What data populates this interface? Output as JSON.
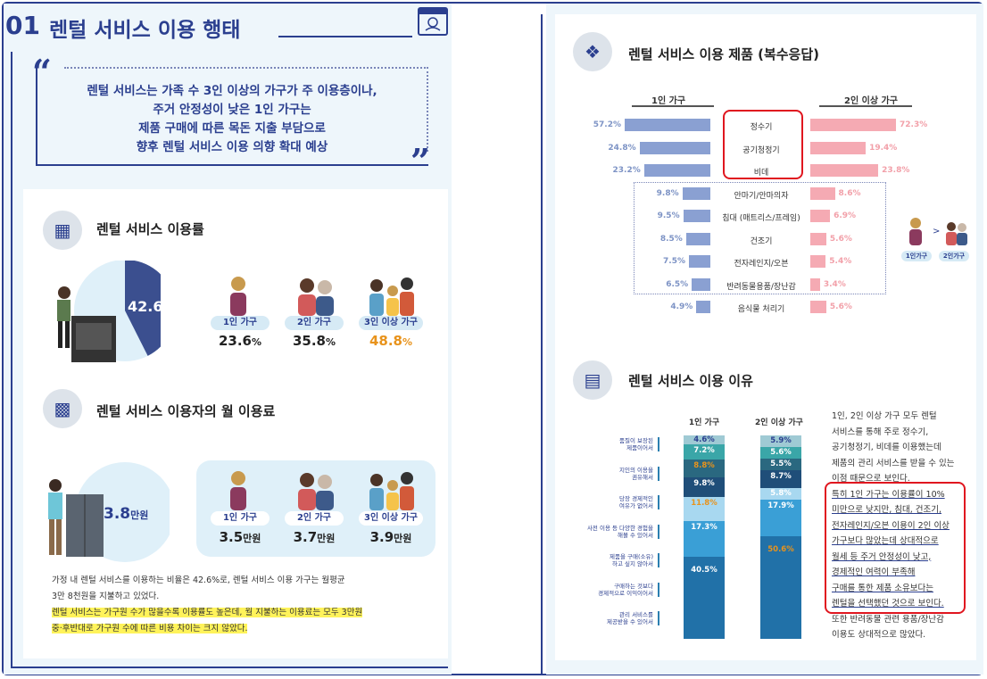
{
  "section": {
    "number": "01",
    "title": "렌털 서비스 이용 행태"
  },
  "quote": {
    "lines": [
      "렌털 서비스는 가족 수 3인 이상의 가구가 주 이용층이나,",
      "주거 안정성이 낮은 1인 가구는",
      "제품 구매에 따른 목돈 지출 부담으로",
      "향후 렌털 서비스 이용 의향 확대 예상"
    ]
  },
  "usage_rate": {
    "title": "렌털 서비스 이용률",
    "overall": "42.6",
    "overall_unit": "%",
    "groups": [
      {
        "label": "1인 가구",
        "value": "23.6",
        "unit": "%"
      },
      {
        "label": "2인 가구",
        "value": "35.8",
        "unit": "%"
      },
      {
        "label": "3인 이상 가구",
        "value": "48.8",
        "unit": "%"
      }
    ]
  },
  "monthly_fee": {
    "title": "렌털 서비스 이용자의 월 이용료",
    "overall": "3.8",
    "overall_unit": "만원",
    "groups": [
      {
        "label": "1인 가구",
        "value": "3.5",
        "unit": "만원"
      },
      {
        "label": "2인 가구",
        "value": "3.7",
        "unit": "만원"
      },
      {
        "label": "3인 이상 가구",
        "value": "3.9",
        "unit": "만원"
      }
    ],
    "note1": "가정 내 렌털 서비스를 이용하는 비율은 42.6%로, 렌털 서비스 이용 가구는 월평균",
    "note2": "3만 8천원을 지불하고 있었다.",
    "note3": "렌털 서비스는 가구원 수가 많을수록 이용률도 높은데, 월 지불하는 이용료는 모두 3만원",
    "note4": "중·후반대로 가구원 수에 따른 비용 차이는 크지 않았다."
  },
  "products": {
    "title": "렌털 서비스 이용 제품 (복수응답)",
    "left_header": "1인 가구",
    "right_header": "2인 이상 가구",
    "legend_one": "1인가구",
    "legend_two": "2인가구"
  },
  "reasons": {
    "title": "렌털 서비스 이용 이유",
    "col1": "1인 가구",
    "col2": "2인 이상 가구",
    "text_plain1": [
      "1인, 2인 이상 가구 모두 렌털",
      "서비스를 통해 주로 정수기,",
      "공기청정기, 비데를 이용했는데",
      "제품의 관리 서비스를 받을 수 있는",
      "이점 때문으로 보인다."
    ],
    "text_highlight": [
      "특히 1인 가구는 이용률이 10%",
      "미만으로 낮지만, 침대, 건조기,",
      "전자레인지/오븐 이용이 2인 이상",
      "가구보다 많았는데 상대적으로",
      "월세 등 주거 안정성이 낮고,",
      "경제적인 여력이 부족해",
      "구매를 통한 제품 소유보다는",
      "렌털을 선택했던 것으로 보인다."
    ],
    "text_plain2": [
      "또한 반려동물 관련 용품/장난감",
      "이용도 상대적으로 많았다."
    ]
  },
  "chart_data": [
    {
      "type": "pie",
      "title": "렌털 서비스 이용률",
      "categories": [
        "이용",
        "미이용"
      ],
      "values": [
        42.6,
        57.4
      ]
    },
    {
      "type": "bar",
      "title": "렌털 서비스 이용 제품 (복수응답)",
      "categories": [
        "정수기",
        "공기청정기",
        "비데",
        "안마기/안마의자",
        "침대 (매트리스/프레임)",
        "건조기",
        "전자레인지/오븐",
        "반려동물용품/장난감",
        "음식물 처리기"
      ],
      "series": [
        {
          "name": "1인 가구",
          "values": [
            57.2,
            24.8,
            23.2,
            9.8,
            9.5,
            8.5,
            7.5,
            6.5,
            4.9
          ]
        },
        {
          "name": "2인 이상 가구",
          "values": [
            72.3,
            19.4,
            23.8,
            8.6,
            6.9,
            5.6,
            5.4,
            3.4,
            5.6
          ]
        }
      ],
      "value_labels_left": [
        "57.2%",
        "24.8%",
        "23.2%",
        "9.8%",
        "9.5%",
        "8.5%",
        "7.5%",
        "6.5%",
        "4.9%"
      ],
      "value_labels_right": [
        "72.3%",
        "19.4%",
        "23.8%",
        "8.6%",
        "6.9%",
        "5.6%",
        "5.4%",
        "3.4%",
        "5.6%"
      ]
    },
    {
      "type": "bar",
      "stacked": true,
      "title": "렌털 서비스 이용 이유",
      "categories": [
        "1인 가구",
        "2인 이상 가구"
      ],
      "series": [
        {
          "name": "관리 서비스를 제공받을 수 있어서",
          "values": [
            40.5,
            50.6
          ]
        },
        {
          "name": "구매하는 것보다 경제적으로 이익이어서",
          "values": [
            17.3,
            17.9
          ]
        },
        {
          "name": "제품을 구매(소유)하고 싶지 않아서",
          "values": [
            11.8,
            5.8
          ]
        },
        {
          "name": "사전 이용 등 다양한 경험을 해볼 수 있어서",
          "values": [
            9.8,
            8.7
          ]
        },
        {
          "name": "당장 경제적인 여유가 없어서",
          "values": [
            8.8,
            5.5
          ]
        },
        {
          "name": "지인의 이용을 권유해서",
          "values": [
            7.2,
            5.6
          ]
        },
        {
          "name": "품질이 보장된 제품이어서",
          "values": [
            4.6,
            5.9
          ]
        }
      ],
      "value_labels_1": [
        "40.5%",
        "17.3%",
        "11.8%",
        "9.8%",
        "8.8%",
        "7.2%",
        "4.6%"
      ],
      "value_labels_2": [
        "50.6%",
        "17.9%",
        "5.8%",
        "8.7%",
        "5.5%",
        "5.6%",
        "5.9%"
      ],
      "reason_lines": [
        [
          "품질이 보장된",
          "제품이어서"
        ],
        [
          "지인의 이용을",
          "권유해서"
        ],
        [
          "당장 경제적인",
          "여유가 없어서"
        ],
        [
          "사전 이용 등 다양한 경험을",
          "해볼 수 있어서"
        ],
        [
          "제품을 구매(소유)",
          "하고 싶지 않아서"
        ],
        [
          "구매하는 것보다",
          "경제적으로 이익이어서"
        ],
        [
          "관리 서비스를",
          "제공받을 수 있어서"
        ]
      ]
    }
  ]
}
